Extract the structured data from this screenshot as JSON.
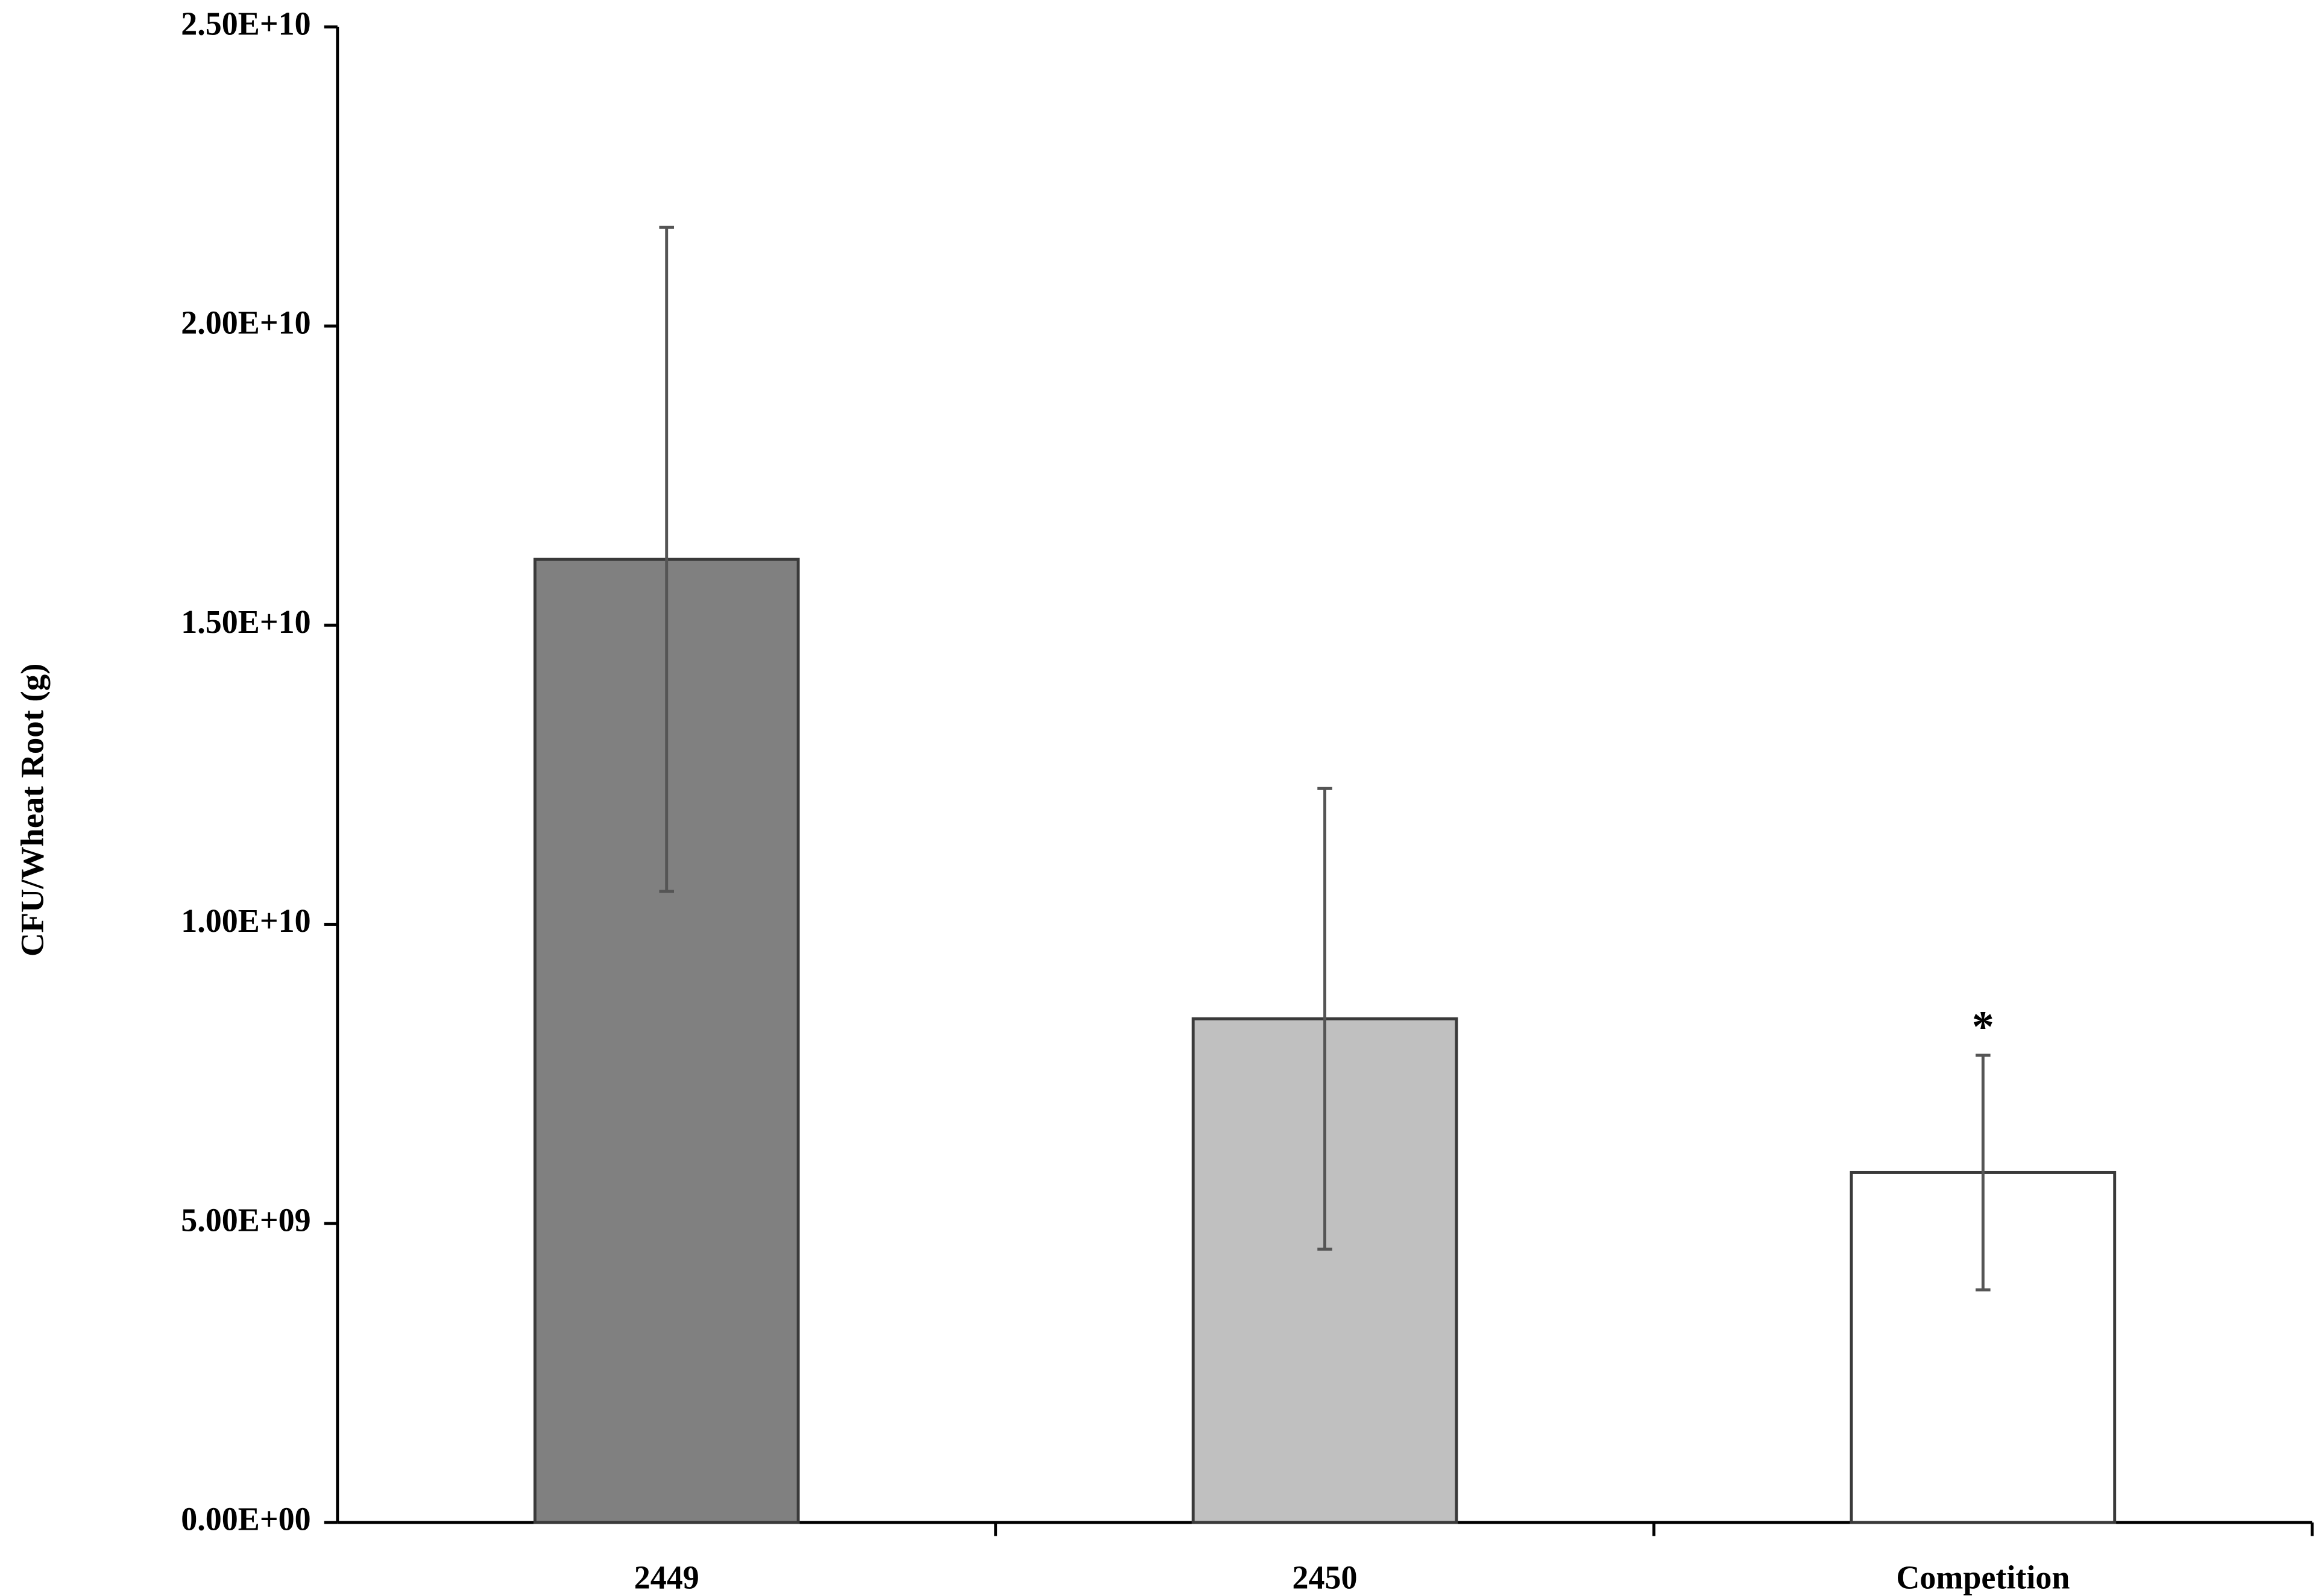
{
  "chart_data": {
    "type": "bar",
    "y_label": "CFU/Wheat Root (g)",
    "categories": [
      "2449",
      "2450",
      "Competition"
    ],
    "values": [
      16100000000,
      8420000000,
      5850000000
    ],
    "errors": [
      5550000000,
      3850000000,
      1960000000
    ],
    "colors": [
      "#808080",
      "#c0c0c0",
      "#ffffff"
    ],
    "edge_color": "#3a3a3a",
    "ylim": [
      0,
      25000000000
    ],
    "yticks": [
      {
        "value": 0,
        "label": "0.00E+00"
      },
      {
        "value": 5000000000,
        "label": "5.00E+09"
      },
      {
        "value": 10000000000,
        "label": "1.00E+10"
      },
      {
        "value": 15000000000,
        "label": "1.50E+10"
      },
      {
        "value": 20000000000,
        "label": "2.00E+10"
      },
      {
        "value": 25000000000,
        "label": "2.50E+10"
      }
    ],
    "annotations": [
      {
        "text": "*",
        "category": "Competition"
      }
    ],
    "grid": false
  }
}
